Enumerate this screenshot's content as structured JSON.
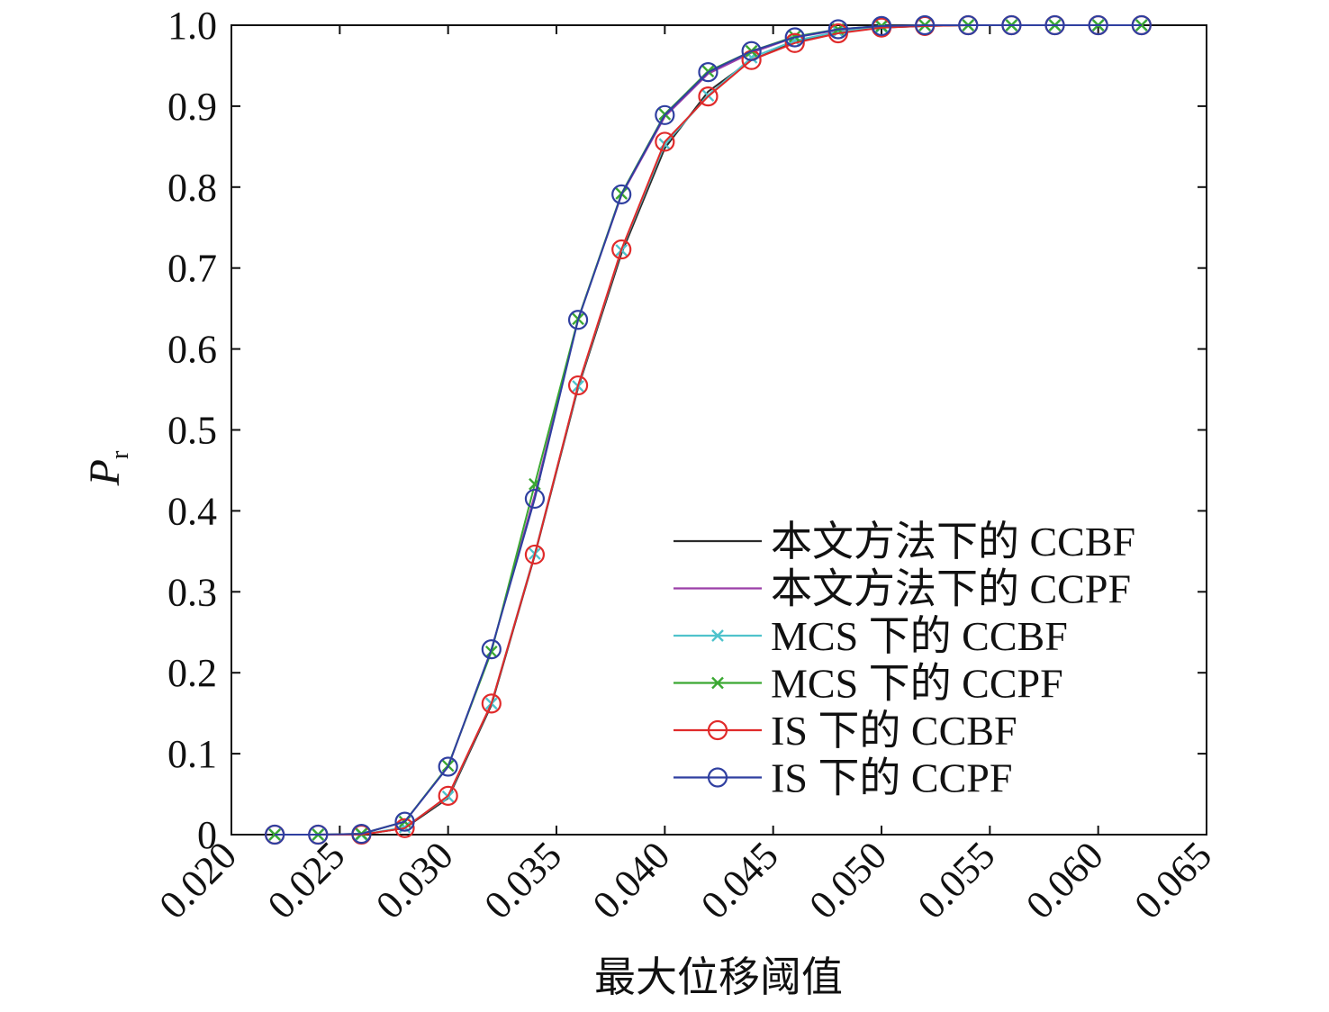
{
  "chart_data": {
    "type": "line",
    "xlabel": "最大位移阈值",
    "ylabel": "P",
    "ylabel_sub": "r",
    "xlim": [
      0.02,
      0.065
    ],
    "ylim": [
      0,
      1.0
    ],
    "xticks": [
      "0.020",
      "0.025",
      "0.030",
      "0.035",
      "0.040",
      "0.045",
      "0.050",
      "0.055",
      "0.060",
      "0.065"
    ],
    "xtick_values": [
      0.02,
      0.025,
      0.03,
      0.035,
      0.04,
      0.045,
      0.05,
      0.055,
      0.06,
      0.065
    ],
    "yticks": [
      "0",
      "0.1",
      "0.2",
      "0.3",
      "0.4",
      "0.5",
      "0.6",
      "0.7",
      "0.8",
      "0.9",
      "1.0"
    ],
    "ytick_values": [
      0,
      0.1,
      0.2,
      0.3,
      0.4,
      0.5,
      0.6,
      0.7,
      0.8,
      0.9,
      1.0
    ],
    "grid": false,
    "legend_position": "bottom-right",
    "x": [
      0.022,
      0.024,
      0.026,
      0.028,
      0.03,
      0.032,
      0.034,
      0.036,
      0.038,
      0.04,
      0.042,
      0.044,
      0.046,
      0.048,
      0.05,
      0.052,
      0.054,
      0.056,
      0.058,
      0.06,
      0.062
    ],
    "series": [
      {
        "name": "本文方法下的 CCBF",
        "color": "#2b2b2b",
        "marker": "none",
        "values": [
          0,
          0,
          0,
          0.008,
          0.045,
          0.16,
          0.345,
          0.552,
          0.718,
          0.848,
          0.918,
          0.957,
          0.979,
          0.991,
          0.997,
          0.999,
          1.0,
          1.0,
          1.0,
          1.0,
          1.0
        ]
      },
      {
        "name": "本文方法下的 CCPF",
        "color": "#9b3fa8",
        "marker": "none",
        "values": [
          0,
          0,
          0.001,
          0.016,
          0.084,
          0.228,
          0.42,
          0.637,
          0.79,
          0.887,
          0.94,
          0.966,
          0.985,
          0.994,
          0.998,
          1.0,
          1.0,
          1.0,
          1.0,
          1.0,
          1.0
        ]
      },
      {
        "name": "MCS 下的 CCBF",
        "color": "#4fc3cc",
        "marker": "x",
        "values": [
          0,
          0,
          0,
          0.009,
          0.047,
          0.162,
          0.347,
          0.554,
          0.722,
          0.853,
          0.913,
          0.96,
          0.981,
          0.992,
          0.998,
          1.0,
          1.0,
          1.0,
          1.0,
          1.0,
          1.0
        ]
      },
      {
        "name": "MCS 下的 CCPF",
        "color": "#3aa832",
        "marker": "x",
        "values": [
          0,
          0,
          0.001,
          0.016,
          0.085,
          0.226,
          0.433,
          0.637,
          0.792,
          0.89,
          0.943,
          0.968,
          0.986,
          0.995,
          0.999,
          1.0,
          1.0,
          1.0,
          1.0,
          1.0,
          1.0
        ]
      },
      {
        "name": "IS 下的 CCBF",
        "color": "#e02a2a",
        "marker": "o",
        "values": [
          0,
          0,
          0,
          0.008,
          0.048,
          0.162,
          0.346,
          0.555,
          0.723,
          0.856,
          0.912,
          0.957,
          0.978,
          0.99,
          0.997,
          0.999,
          1.0,
          1.0,
          1.0,
          1.0,
          1.0
        ]
      },
      {
        "name": "IS 下的 CCPF",
        "color": "#2f3fa0",
        "marker": "o",
        "values": [
          0,
          0,
          0.001,
          0.016,
          0.084,
          0.229,
          0.415,
          0.636,
          0.791,
          0.889,
          0.942,
          0.968,
          0.985,
          0.995,
          0.999,
          1.0,
          1.0,
          1.0,
          1.0,
          1.0,
          1.0
        ]
      }
    ]
  }
}
